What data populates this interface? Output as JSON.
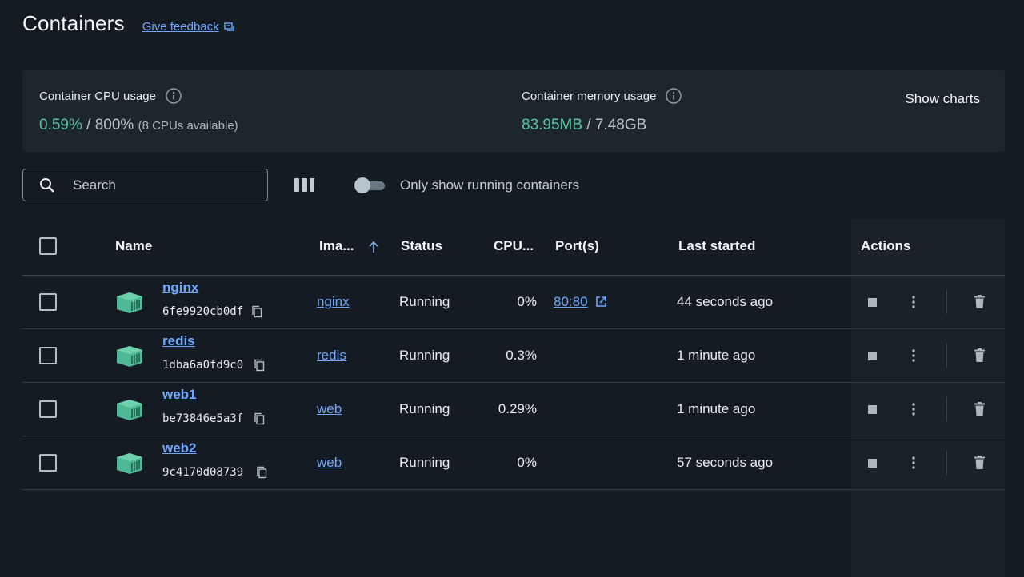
{
  "header": {
    "title": "Containers",
    "feedback_link": "Give feedback"
  },
  "usage": {
    "cpu": {
      "label": "Container CPU usage",
      "used": "0.59%",
      "separator": " / ",
      "total": "800%",
      "note": "(8 CPUs available)"
    },
    "memory": {
      "label": "Container memory usage",
      "used": "83.95MB",
      "separator": " / ",
      "total": "7.48GB"
    },
    "show_charts": "Show charts"
  },
  "toolbar": {
    "search_placeholder": "Search",
    "toggle_label": "Only show running containers"
  },
  "table": {
    "headers": {
      "name": "Name",
      "image": "Ima...",
      "status": "Status",
      "cpu": "CPU...",
      "ports": "Port(s)",
      "last_started": "Last started",
      "actions": "Actions"
    },
    "rows": [
      {
        "name": "nginx",
        "id": "6fe9920cb0df",
        "image": "nginx",
        "status": "Running",
        "cpu": "0%",
        "port": "80:80",
        "last_started": "44 seconds ago"
      },
      {
        "name": "redis",
        "id": "1dba6a0fd9c0",
        "image": "redis",
        "status": "Running",
        "cpu": "0.3%",
        "port": "",
        "last_started": "1 minute ago"
      },
      {
        "name": "web1",
        "id": "be73846e5a3f",
        "image": "web",
        "status": "Running",
        "cpu": "0.29%",
        "port": "",
        "last_started": "1 minute ago"
      },
      {
        "name": "web2",
        "id": "9c4170d08739",
        "image": "web",
        "status": "Running",
        "cpu": "0%",
        "port": "",
        "last_started": "57 seconds ago"
      }
    ]
  },
  "colors": {
    "background": "#151b23",
    "panel": "#1c262c",
    "link": "#6ea8fe",
    "accent_green": "#58c4a0",
    "container_icon": "#4fb896"
  }
}
